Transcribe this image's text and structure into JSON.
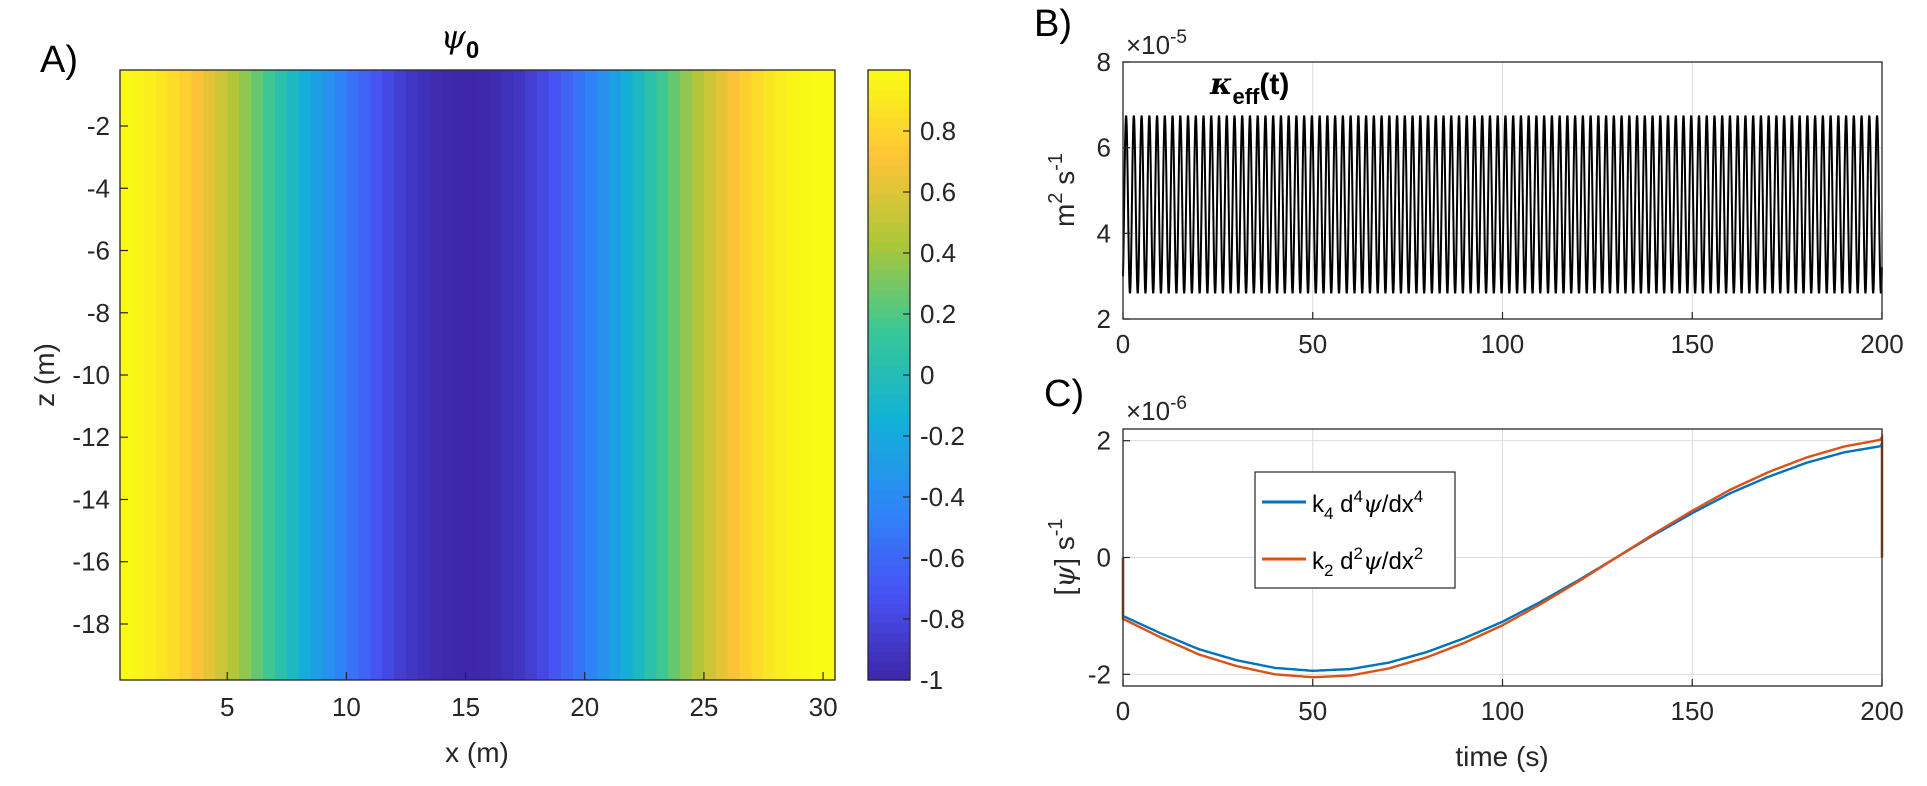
{
  "chart_data": [
    {
      "panel": "A)",
      "type": "heatmap",
      "title_symbol": "ψ",
      "title_subscript": "0",
      "xlabel": "x (m)",
      "ylabel": "z (m)",
      "xlim": [
        0.5,
        30.5
      ],
      "ylim": [
        -19.8,
        -0.2
      ],
      "x_ticks": [
        5,
        10,
        15,
        20,
        25,
        30
      ],
      "y_ticks": [
        -2,
        -4,
        -6,
        -8,
        -10,
        -12,
        -14,
        -16,
        -18
      ],
      "field": "cos(2*pi*x/30)",
      "x_cells": 60,
      "colorbar": {
        "colormap": "parula",
        "limits": [
          -1,
          1
        ],
        "ticks": [
          0.8,
          0.6,
          0.4,
          0.2,
          0,
          -0.2,
          -0.4,
          -0.6,
          -0.8,
          -1
        ],
        "tick_labels": [
          "0.8",
          "0.6",
          "0.4",
          "0.2",
          "0",
          "-0.2",
          "-0.4",
          "-0.6",
          "-0.8",
          "-1"
        ]
      }
    },
    {
      "panel": "B)",
      "type": "line",
      "annotation_symbol": "κ",
      "annotation_subscript": "eff",
      "annotation_suffix": "(t)",
      "ylabel_parts": [
        "m",
        "2",
        " s",
        "-1"
      ],
      "exponent_label": "×10",
      "exponent_power": "-5",
      "xlim": [
        0,
        200
      ],
      "ylim": [
        2,
        8
      ],
      "x_ticks": [
        0,
        50,
        100,
        150,
        200
      ],
      "y_ticks": [
        2,
        4,
        6,
        8
      ],
      "grid": true,
      "series": [
        {
          "color": "#000000",
          "min": 2.6,
          "max": 6.75,
          "period": 2.04,
          "phase": 0.1
        }
      ]
    },
    {
      "panel": "C)",
      "type": "line",
      "xlabel": "time (s)",
      "ylabel_parts": [
        "[",
        "ψ",
        "] s",
        "-1"
      ],
      "exponent_label": "×10",
      "exponent_power": "-6",
      "xlim": [
        0,
        200
      ],
      "ylim": [
        -2.2,
        2.2
      ],
      "x_ticks": [
        0,
        50,
        100,
        150,
        200
      ],
      "y_ticks": [
        -2,
        0,
        2
      ],
      "grid": true,
      "legend": "upper-left",
      "series": [
        {
          "label": {
            "k": "k",
            "k_sub": "4",
            "d": " d",
            "d_sup": "4",
            "psi": "ψ",
            "dx": "/dx",
            "dx_sup": "4"
          },
          "color": "#0072BD",
          "amplitude": 1.94,
          "x": [
            0,
            10,
            20,
            30,
            40,
            50,
            60,
            70,
            80,
            90,
            100,
            110,
            120,
            130,
            140,
            150,
            160,
            170,
            180,
            190,
            200
          ],
          "y": [
            -1.0,
            -1.3,
            -1.57,
            -1.76,
            -1.89,
            -1.94,
            -1.91,
            -1.8,
            -1.62,
            -1.38,
            -1.1,
            -0.76,
            -0.39,
            0.0,
            0.39,
            0.76,
            1.1,
            1.38,
            1.62,
            1.8,
            1.91
          ]
        },
        {
          "label": {
            "k": "k",
            "k_sub": "2",
            "d": " d",
            "d_sup": "2",
            "psi": "ψ",
            "dx": "/dx",
            "dx_sup": "2"
          },
          "color": "#D95319",
          "amplitude": 2.05,
          "x": [
            0,
            10,
            20,
            30,
            40,
            50,
            60,
            70,
            80,
            90,
            100,
            110,
            120,
            130,
            140,
            150,
            160,
            170,
            180,
            190,
            200
          ],
          "y": [
            -1.05,
            -1.37,
            -1.66,
            -1.86,
            -2.0,
            -2.05,
            -2.02,
            -1.9,
            -1.71,
            -1.46,
            -1.16,
            -0.8,
            -0.41,
            0.0,
            0.41,
            0.8,
            1.16,
            1.46,
            1.71,
            1.9,
            2.02
          ]
        }
      ]
    }
  ]
}
